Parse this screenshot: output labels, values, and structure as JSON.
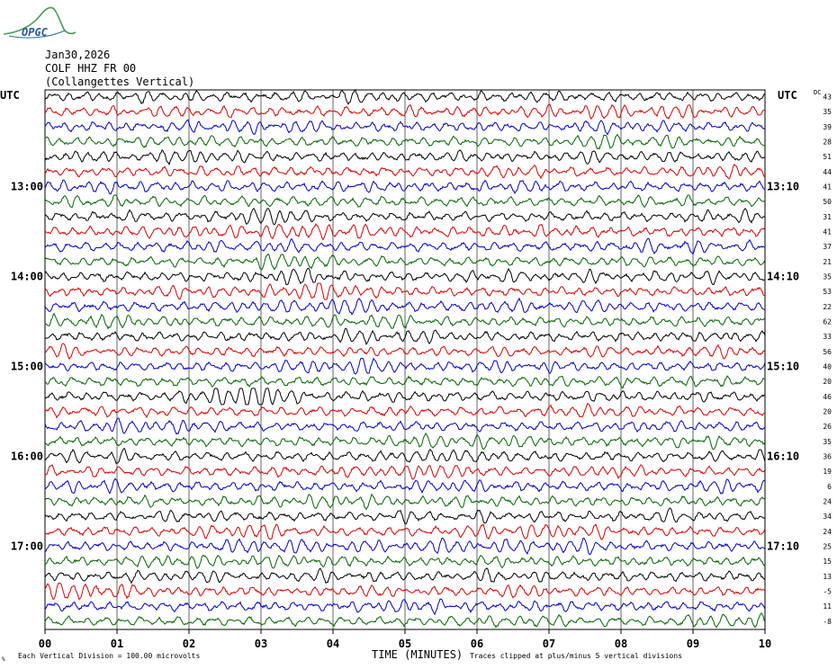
{
  "logo": {
    "text": "OPGC"
  },
  "header": {
    "date": "Jan30,2026",
    "station": "COLF HHZ FR 00",
    "location": "(Collangettes Vertical)"
  },
  "left_axis_label": "UTC",
  "right_axis_label": "UTC",
  "dc_label": "DC",
  "footer": {
    "scale_note": "Each Vertical Division =  100.00 microvolts",
    "xlabel": "TIME (MINUTES)",
    "clip_note": "Traces clipped at plus/minus 5 vertical divisions",
    "corner_mark": "%"
  },
  "colors": {
    "trace_cycle": [
      "#000000",
      "#dd0000",
      "#0000cc",
      "#006600"
    ],
    "grid": "#000000"
  },
  "chart_data": {
    "type": "line",
    "title": "COLF HHZ FR 00 (Collangettes Vertical)",
    "xlabel": "TIME (MINUTES)",
    "x_ticks": [
      "00",
      "01",
      "02",
      "03",
      "04",
      "05",
      "06",
      "07",
      "08",
      "09",
      "10"
    ],
    "xlim": [
      0,
      10
    ],
    "trace_minutes": 10,
    "trace_count": 36,
    "left_hour_labels": [
      {
        "trace": 6,
        "label": "13:00"
      },
      {
        "trace": 12,
        "label": "14:00"
      },
      {
        "trace": 18,
        "label": "15:00"
      },
      {
        "trace": 24,
        "label": "16:00"
      },
      {
        "trace": 30,
        "label": "17:00"
      }
    ],
    "right_hour_labels": [
      {
        "trace": 6,
        "label": "13:10"
      },
      {
        "trace": 12,
        "label": "14:10"
      },
      {
        "trace": 18,
        "label": "15:10"
      },
      {
        "trace": 24,
        "label": "16:10"
      },
      {
        "trace": 30,
        "label": "17:10"
      }
    ],
    "dc_offsets": [
      43,
      35,
      39,
      28,
      51,
      44,
      41,
      50,
      31,
      41,
      37,
      21,
      35,
      53,
      22,
      62,
      33,
      56,
      40,
      20,
      46,
      20,
      26,
      35,
      36,
      19,
      6,
      24,
      34,
      24,
      25,
      15,
      13,
      -5,
      11,
      -8
    ],
    "scale_microvolts_per_division": 100.0,
    "clip_divisions": 5
  }
}
